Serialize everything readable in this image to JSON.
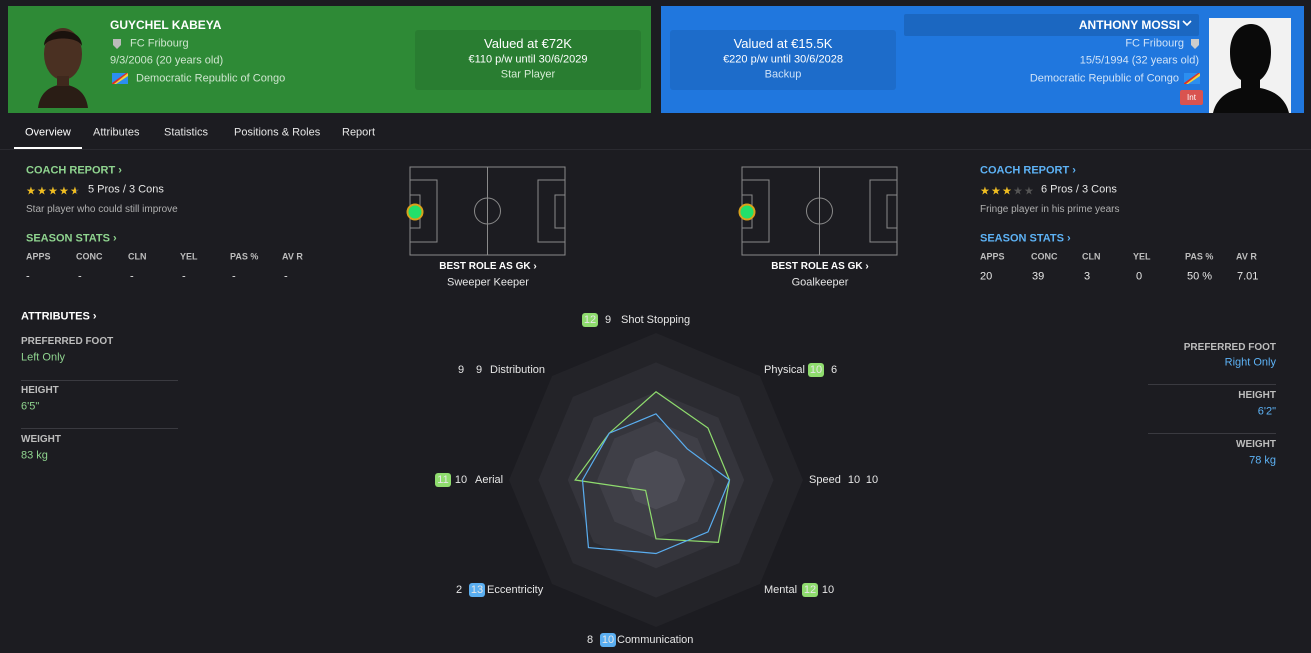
{
  "player_left": {
    "name": "GUYCHEL KABEYA",
    "club": "FC Fribourg",
    "birth": "9/3/2006 (20 years old)",
    "nation": "Democratic Republic of Congo"
  },
  "value_left": {
    "valued": "Valued at €72K",
    "wage": "€110 p/w until 30/6/2029",
    "status": "Star Player"
  },
  "player_right": {
    "name": "ANTHONY MOSSI",
    "club": "FC Fribourg",
    "birth": "15/5/1994 (32 years old)",
    "nation": "Democratic Republic of Congo",
    "badge": "Int"
  },
  "value_right": {
    "valued": "Valued at €15.5K",
    "wage": "€220 p/w until 30/6/2028",
    "status": "Backup"
  },
  "tabs": [
    "Overview",
    "Attributes",
    "Statistics",
    "Positions & Roles",
    "Report"
  ],
  "left_report": {
    "coach_report": "COACH REPORT",
    "stars": 4.5,
    "pros_cons": "5 Pros / 3 Cons",
    "summary": "Star player who could still improve",
    "season_stats": "SEASON STATS",
    "stat_headers": [
      "APPS",
      "CONC",
      "CLN",
      "YEL",
      "PAS %",
      "AV R"
    ],
    "stat_values": [
      "-",
      "-",
      "-",
      "-",
      "-",
      "-"
    ]
  },
  "right_report": {
    "coach_report": "COACH REPORT",
    "stars": 3,
    "pros_cons": "6 Pros / 3 Cons",
    "summary": "Fringe player in his prime years",
    "season_stats": "SEASON STATS",
    "stat_headers": [
      "APPS",
      "CONC",
      "CLN",
      "YEL",
      "PAS %",
      "AV R"
    ],
    "stat_values": [
      20,
      39,
      3,
      0,
      "50 %",
      7.01
    ]
  },
  "roles": {
    "left": {
      "heading": "BEST ROLE AS GK",
      "role": "Sweeper Keeper"
    },
    "right": {
      "heading": "BEST ROLE AS GK",
      "role": "Goalkeeper"
    }
  },
  "attributes_left": {
    "heading": "ATTRIBUTES",
    "items": [
      {
        "label": "PREFERRED FOOT",
        "value": "Left Only"
      },
      {
        "label": "HEIGHT",
        "value": "6'5\""
      },
      {
        "label": "WEIGHT",
        "value": "83 kg"
      }
    ]
  },
  "attributes_right": {
    "items": [
      {
        "label": "PREFERRED FOOT",
        "value": "Right Only"
      },
      {
        "label": "HEIGHT",
        "value": "6'2\""
      },
      {
        "label": "WEIGHT",
        "value": "78 kg"
      }
    ]
  },
  "radar": {
    "rlim": [
      0,
      20
    ],
    "left_color": "#8fdc6e",
    "right_color": "#5aaef0",
    "attributes": [
      {
        "label": "Shot Stopping",
        "left": 12,
        "right": 9
      },
      {
        "label": "Physical",
        "left": 10,
        "right": 6
      },
      {
        "label": "Speed",
        "left": 10,
        "right": 10
      },
      {
        "label": "Mental",
        "left": 12,
        "right": 10
      },
      {
        "label": "Communication",
        "left": 8,
        "right": 10
      },
      {
        "label": "Eccentricity",
        "left": 2,
        "right": 13
      },
      {
        "label": "Aerial",
        "left": 11,
        "right": 10
      },
      {
        "label": "Distribution",
        "left": 9,
        "right": 9
      }
    ]
  }
}
